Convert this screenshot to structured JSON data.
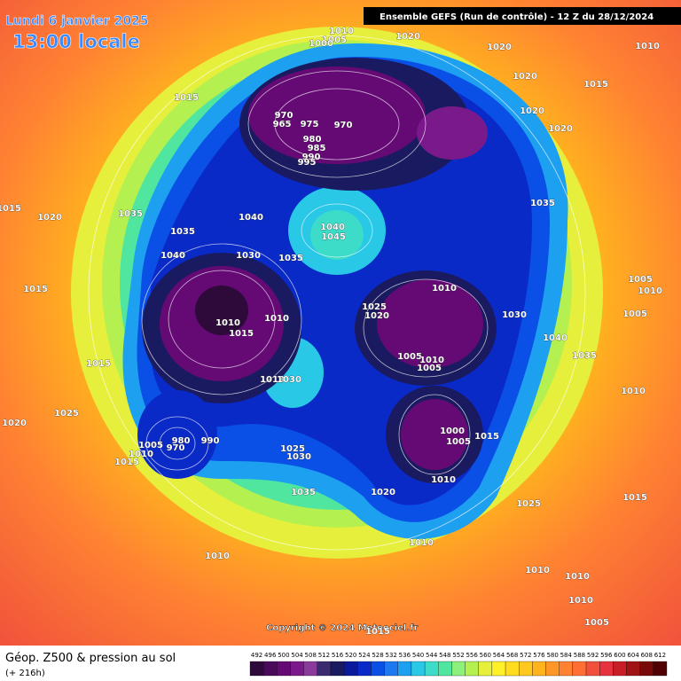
{
  "header": {
    "date": "Lundi 6 janvier 2025",
    "time": "13:00 locale",
    "run": "Ensemble GEFS  (Run de contrôle)  -  12 Z du 28/12/2024"
  },
  "footer": {
    "title": "Géop. Z500 & pression au sol",
    "lead": "(+ 216h)",
    "copyright": "Copyright © 2024 Meteociel.fr"
  },
  "colorbar": {
    "values": [
      492,
      496,
      500,
      504,
      508,
      512,
      516,
      520,
      524,
      528,
      532,
      536,
      540,
      544,
      548,
      552,
      556,
      560,
      564,
      568,
      572,
      576,
      580,
      584,
      588,
      592,
      596,
      600,
      604,
      608,
      612
    ],
    "colors": [
      "#2d0a3a",
      "#4a0a5a",
      "#650a75",
      "#7a1a8a",
      "#8a3a9a",
      "#3a2a70",
      "#1a1a60",
      "#0a1a9a",
      "#0a2ac8",
      "#0a50e6",
      "#1e78f0",
      "#1ea0f0",
      "#28c8e6",
      "#3cdcc8",
      "#50e6a0",
      "#8cf07a",
      "#b4f050",
      "#e6f03c",
      "#fff028",
      "#ffdc1e",
      "#ffc81e",
      "#ffb41e",
      "#ff9628",
      "#ff8232",
      "#ff6e32",
      "#f0503c",
      "#e6323c",
      "#c81e28",
      "#a01414",
      "#780a0a",
      "#500000"
    ]
  },
  "isobar_labels": [
    "1010",
    "1005",
    "1000",
    "1020",
    "1020",
    "1020",
    "1015",
    "1010",
    "1015",
    "1020",
    "1020",
    "970",
    "965",
    "975",
    "970",
    "980",
    "985",
    "990",
    "995",
    "1035",
    "1015",
    "1020",
    "1035",
    "1040",
    "1035",
    "1040",
    "1045",
    "1040",
    "1030",
    "1035",
    "1010",
    "1005",
    "1010",
    "1015",
    "1025",
    "1020",
    "1010",
    "1010",
    "1015",
    "1030",
    "1005",
    "1040",
    "1005",
    "1010",
    "1005",
    "1035",
    "1015",
    "1010",
    "1030",
    "1010",
    "1025",
    "1020",
    "1000",
    "1005",
    "1015",
    "980",
    "1005",
    "990",
    "970",
    "1010",
    "1025",
    "1030",
    "1015",
    "1035",
    "1020",
    "1010",
    "1025",
    "1015",
    "1010",
    "1010",
    "1010",
    "1010",
    "1010",
    "1005",
    "1015"
  ]
}
